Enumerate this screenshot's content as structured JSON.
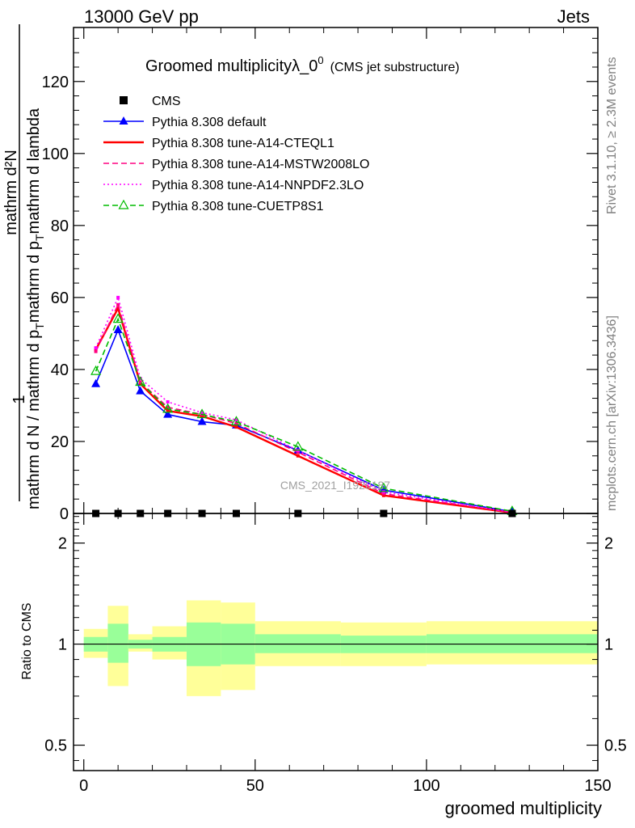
{
  "header": {
    "energy": "13000 GeV pp",
    "category": "Jets"
  },
  "side_labels": {
    "rivet": "Rivet 3.1.10, ≥ 2.3M events",
    "mcplots": "mcplots.cern.ch [arXiv:1306.3436]"
  },
  "watermark": "CMS_2021_I1920187",
  "chart_data": [
    {
      "type": "line",
      "title": "Groomed multiplicityλ_0",
      "title_superscript": "0",
      "title_suffix": "(CMS jet substructure)",
      "ylabel": {
        "prefix": "1",
        "upper": "mathrm d²N",
        "lower": "mathrm d N / mathrm d p",
        "lower_sub": "T",
        "lower_tail": "mathrm d p",
        "lower_tail_sub": "T",
        "lower_end": "mathrm d lambda"
      },
      "xlim": [
        -3,
        150
      ],
      "ylim": [
        0,
        135
      ],
      "y_ticks": [
        0,
        20,
        40,
        60,
        80,
        100,
        120
      ],
      "grid": false,
      "legend_position": "top-left",
      "x": [
        3.5,
        10,
        16.5,
        24.5,
        34.5,
        44.5,
        62.5,
        87.5,
        125
      ],
      "reference": {
        "name": "CMS",
        "color": "#000000",
        "values": [
          0,
          0,
          0,
          0,
          0,
          0,
          0,
          0,
          0
        ]
      },
      "series": [
        {
          "name": "Pythia 8.308 default",
          "color": "#0000ff",
          "style": "solid",
          "marker": "filled-triangle",
          "values": [
            36,
            51,
            34,
            27.5,
            25.5,
            24.5,
            17.5,
            6.5,
            0.5
          ]
        },
        {
          "name": "Pythia 8.308 tune-A14-CTEQL1",
          "color": "#ff0000",
          "style": "solid",
          "marker": "none",
          "values": [
            45.5,
            57,
            36,
            28.5,
            27,
            24,
            16,
            5,
            0.2
          ]
        },
        {
          "name": "Pythia 8.308 tune-A14-MSTW2008LO",
          "color": "#ff0080",
          "style": "dashed",
          "marker": "none",
          "values": [
            45,
            58,
            36.5,
            29.5,
            27.5,
            25,
            17,
            5.5,
            0.3
          ]
        },
        {
          "name": "Pythia 8.308 tune-A14-NNPDF2.3LO",
          "color": "#ff00ff",
          "style": "dotted",
          "marker": "none",
          "values": [
            46,
            60,
            37.5,
            31,
            28,
            26,
            17.5,
            6,
            0.3
          ]
        },
        {
          "name": "Pythia 8.308 tune-CUETP8S1",
          "color": "#00bb00",
          "style": "dashed",
          "marker": "open-triangle",
          "values": [
            39.5,
            54,
            36.5,
            29,
            27.5,
            25.5,
            18.5,
            7,
            0.6
          ]
        }
      ]
    },
    {
      "type": "band",
      "ylabel": "Ratio to CMS",
      "xlabel": "groomed multiplicity",
      "x_ticks": [
        0,
        50,
        100,
        150
      ],
      "y_ticks": [
        0.5,
        1,
        2
      ],
      "y_scale": "log",
      "ylim": [
        0.42,
        2.45
      ],
      "xlim": [
        -3,
        150
      ],
      "reference_line": 1,
      "bins": [
        {
          "lo": 0,
          "hi": 7,
          "inner": [
            0.95,
            1.05
          ],
          "outer": [
            0.91,
            1.11
          ]
        },
        {
          "lo": 7,
          "hi": 13,
          "inner": [
            0.88,
            1.15
          ],
          "outer": [
            0.75,
            1.3
          ]
        },
        {
          "lo": 13,
          "hi": 20,
          "inner": [
            0.97,
            1.03
          ],
          "outer": [
            0.95,
            1.07
          ]
        },
        {
          "lo": 20,
          "hi": 30,
          "inner": [
            0.95,
            1.05
          ],
          "outer": [
            0.9,
            1.13
          ]
        },
        {
          "lo": 30,
          "hi": 40,
          "inner": [
            0.86,
            1.16
          ],
          "outer": [
            0.7,
            1.35
          ]
        },
        {
          "lo": 40,
          "hi": 50,
          "inner": [
            0.87,
            1.15
          ],
          "outer": [
            0.73,
            1.33
          ]
        },
        {
          "lo": 50,
          "hi": 75,
          "inner": [
            0.94,
            1.07
          ],
          "outer": [
            0.86,
            1.17
          ]
        },
        {
          "lo": 75,
          "hi": 100,
          "inner": [
            0.94,
            1.06
          ],
          "outer": [
            0.86,
            1.16
          ]
        },
        {
          "lo": 100,
          "hi": 150,
          "inner": [
            0.94,
            1.07
          ],
          "outer": [
            0.87,
            1.17
          ]
        }
      ],
      "inner_color": "#99ff99",
      "outer_color": "#ffff99"
    }
  ]
}
